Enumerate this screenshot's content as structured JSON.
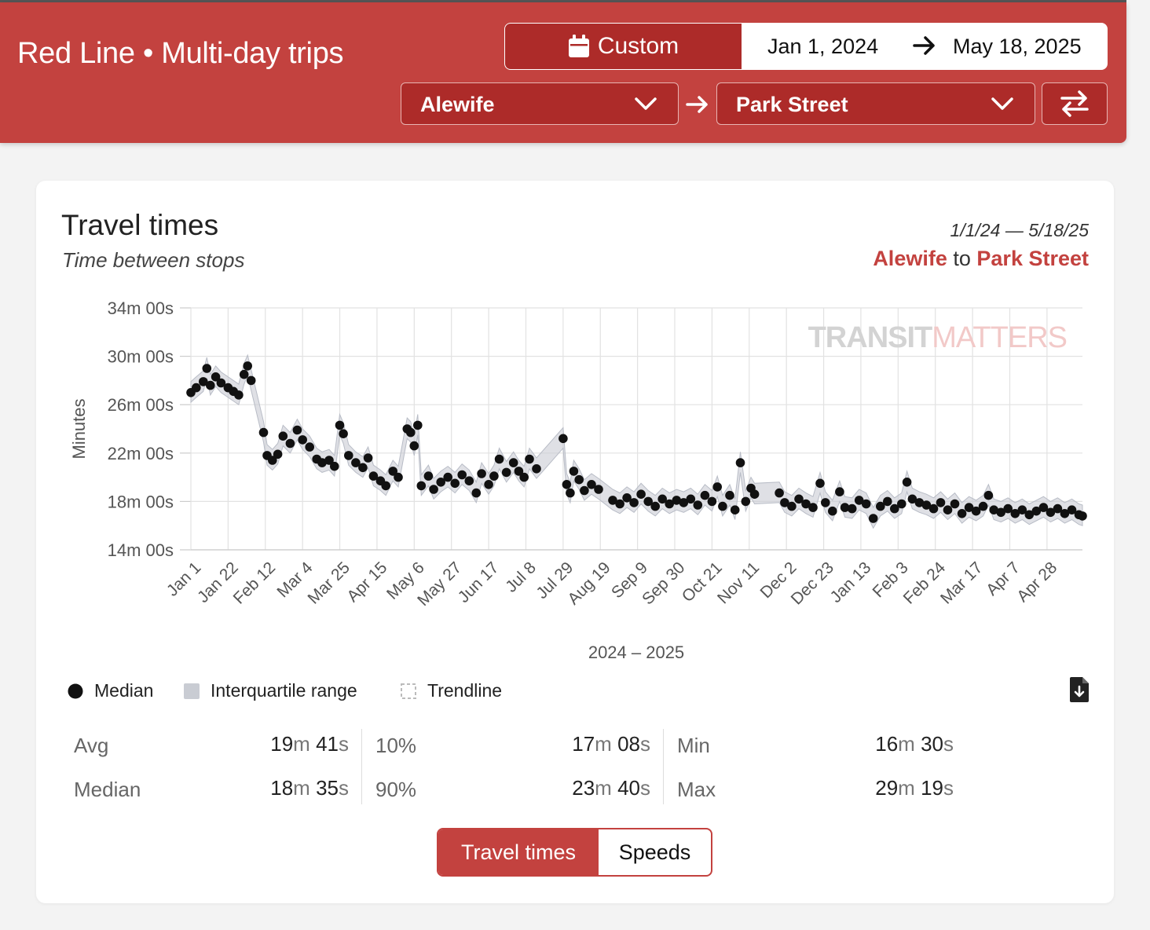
{
  "header": {
    "title": "Red Line • Multi-day trips",
    "custom_label": "Custom",
    "start_date": "Jan 1, 2024",
    "end_date": "May 18, 2025",
    "from_station": "Alewife",
    "to_station": "Park Street",
    "icons": {
      "calendar": "calendar-icon",
      "arrow": "arrow-right-icon",
      "chevron": "chevron-down-icon",
      "swap": "swap-icon"
    }
  },
  "card": {
    "title": "Travel times",
    "subtitle": "Time between stops",
    "range": "1/1/24 — 5/18/25",
    "from": "Alewife",
    "to_word": "to",
    "to": "Park Street"
  },
  "legend": {
    "median": "Median",
    "iqr": "Interquartile range",
    "trend": "Trendline"
  },
  "stats": {
    "avg": {
      "label": "Avg",
      "m": "19",
      "s": "41"
    },
    "median": {
      "label": "Median",
      "m": "18",
      "s": "35"
    },
    "p10": {
      "label": "10%",
      "m": "17",
      "s": "08"
    },
    "p90": {
      "label": "90%",
      "m": "23",
      "s": "40"
    },
    "min": {
      "label": "Min",
      "m": "16",
      "s": "30"
    },
    "max": {
      "label": "Max",
      "m": "29",
      "s": "19"
    },
    "unit_m": "m",
    "unit_s": "s"
  },
  "toggle": {
    "travel_times": "Travel times",
    "speeds": "Speeds"
  },
  "colors": {
    "brand": "#c3423f",
    "brand_dark": "#ad2b29",
    "iqr": "#c9ccd3",
    "dot": "#111111"
  },
  "chart_data": {
    "type": "scatter",
    "xlabel": "2024 – 2025",
    "ylabel": "Minutes",
    "watermark": [
      "TRANSIT",
      "MATTERS"
    ],
    "x_start": "2024-01-01",
    "x_end": "2025-05-18",
    "x_ticks": [
      "Jan 1",
      "Jan 22",
      "Feb 12",
      "Mar 4",
      "Mar 25",
      "Apr 15",
      "May 6",
      "May 27",
      "Jun 17",
      "Jul 8",
      "Jul 29",
      "Aug 19",
      "Sep 9",
      "Sep 30",
      "Oct 21",
      "Nov 11",
      "Dec 2",
      "Dec 23",
      "Jan 13",
      "Feb 3",
      "Feb 24",
      "Mar 17",
      "Apr 7",
      "Apr 28"
    ],
    "y_ticks": [
      "34m 00s",
      "30m 00s",
      "26m 00s",
      "22m 00s",
      "18m 00s",
      "14m 00s"
    ],
    "ylim": [
      14,
      34
    ],
    "grid": true,
    "series": [
      {
        "name": "Median",
        "points": [
          [
            "2024-01-01",
            27.0
          ],
          [
            "2024-01-04",
            27.4
          ],
          [
            "2024-01-08",
            27.9
          ],
          [
            "2024-01-10",
            29.0
          ],
          [
            "2024-01-12",
            27.6
          ],
          [
            "2024-01-15",
            28.3
          ],
          [
            "2024-01-18",
            27.8
          ],
          [
            "2024-01-22",
            27.4
          ],
          [
            "2024-01-25",
            27.1
          ],
          [
            "2024-01-28",
            26.8
          ],
          [
            "2024-01-31",
            28.5
          ],
          [
            "2024-02-02",
            29.2
          ],
          [
            "2024-02-04",
            28.0
          ],
          [
            "2024-02-11",
            23.7
          ],
          [
            "2024-02-13",
            21.8
          ],
          [
            "2024-02-16",
            21.4
          ],
          [
            "2024-02-19",
            21.9
          ],
          [
            "2024-02-22",
            23.4
          ],
          [
            "2024-02-26",
            22.8
          ],
          [
            "2024-03-01",
            23.9
          ],
          [
            "2024-03-04",
            23.1
          ],
          [
            "2024-03-08",
            22.5
          ],
          [
            "2024-03-12",
            21.5
          ],
          [
            "2024-03-15",
            21.2
          ],
          [
            "2024-03-19",
            21.4
          ],
          [
            "2024-03-22",
            20.9
          ],
          [
            "2024-03-25",
            24.3
          ],
          [
            "2024-03-27",
            23.6
          ],
          [
            "2024-03-30",
            21.8
          ],
          [
            "2024-04-03",
            21.2
          ],
          [
            "2024-04-07",
            20.8
          ],
          [
            "2024-04-10",
            21.6
          ],
          [
            "2024-04-13",
            20.1
          ],
          [
            "2024-04-17",
            19.7
          ],
          [
            "2024-04-20",
            19.3
          ],
          [
            "2024-04-24",
            20.5
          ],
          [
            "2024-04-27",
            20.0
          ],
          [
            "2024-05-02",
            24.0
          ],
          [
            "2024-05-04",
            23.7
          ],
          [
            "2024-05-06",
            22.6
          ],
          [
            "2024-05-08",
            24.3
          ],
          [
            "2024-05-10",
            19.3
          ],
          [
            "2024-05-14",
            20.1
          ],
          [
            "2024-05-17",
            19.0
          ],
          [
            "2024-05-21",
            19.6
          ],
          [
            "2024-05-25",
            20.0
          ],
          [
            "2024-05-29",
            19.5
          ],
          [
            "2024-06-02",
            20.2
          ],
          [
            "2024-06-06",
            19.7
          ],
          [
            "2024-06-10",
            18.7
          ],
          [
            "2024-06-13",
            20.3
          ],
          [
            "2024-06-17",
            19.4
          ],
          [
            "2024-06-20",
            20.1
          ],
          [
            "2024-06-23",
            21.5
          ],
          [
            "2024-06-27",
            20.4
          ],
          [
            "2024-07-01",
            21.2
          ],
          [
            "2024-07-04",
            20.5
          ],
          [
            "2024-07-07",
            20.0
          ],
          [
            "2024-07-10",
            21.5
          ],
          [
            "2024-07-14",
            20.7
          ],
          [
            "2024-07-29",
            23.2
          ],
          [
            "2024-07-31",
            19.4
          ],
          [
            "2024-08-02",
            18.7
          ],
          [
            "2024-08-04",
            20.5
          ],
          [
            "2024-08-07",
            19.8
          ],
          [
            "2024-08-10",
            18.9
          ],
          [
            "2024-08-14",
            19.4
          ],
          [
            "2024-08-18",
            19.0
          ],
          [
            "2024-08-26",
            18.1
          ],
          [
            "2024-08-30",
            17.8
          ],
          [
            "2024-09-03",
            18.3
          ],
          [
            "2024-09-07",
            17.9
          ],
          [
            "2024-09-11",
            18.6
          ],
          [
            "2024-09-15",
            18.0
          ],
          [
            "2024-09-19",
            17.6
          ],
          [
            "2024-09-23",
            18.2
          ],
          [
            "2024-09-27",
            17.8
          ],
          [
            "2024-10-01",
            18.1
          ],
          [
            "2024-10-05",
            17.9
          ],
          [
            "2024-10-09",
            18.2
          ],
          [
            "2024-10-13",
            17.7
          ],
          [
            "2024-10-17",
            18.5
          ],
          [
            "2024-10-21",
            18.0
          ],
          [
            "2024-10-24",
            19.2
          ],
          [
            "2024-10-27",
            17.6
          ],
          [
            "2024-10-31",
            18.5
          ],
          [
            "2024-11-03",
            17.3
          ],
          [
            "2024-11-06",
            21.2
          ],
          [
            "2024-11-09",
            18.0
          ],
          [
            "2024-11-12",
            19.1
          ],
          [
            "2024-11-14",
            18.6
          ],
          [
            "2024-11-28",
            18.7
          ],
          [
            "2024-12-01",
            17.9
          ],
          [
            "2024-12-05",
            17.6
          ],
          [
            "2024-12-09",
            18.2
          ],
          [
            "2024-12-13",
            17.8
          ],
          [
            "2024-12-17",
            17.5
          ],
          [
            "2024-12-21",
            19.5
          ],
          [
            "2024-12-24",
            17.9
          ],
          [
            "2024-12-28",
            17.2
          ],
          [
            "2025-01-01",
            18.8
          ],
          [
            "2025-01-04",
            17.5
          ],
          [
            "2025-01-08",
            17.4
          ],
          [
            "2025-01-12",
            18.1
          ],
          [
            "2025-01-16",
            17.8
          ],
          [
            "2025-01-20",
            16.6
          ],
          [
            "2025-01-24",
            17.6
          ],
          [
            "2025-01-28",
            18.0
          ],
          [
            "2025-02-01",
            17.4
          ],
          [
            "2025-02-05",
            17.8
          ],
          [
            "2025-02-08",
            19.6
          ],
          [
            "2025-02-11",
            18.2
          ],
          [
            "2025-02-15",
            17.9
          ],
          [
            "2025-02-19",
            17.7
          ],
          [
            "2025-02-23",
            17.4
          ],
          [
            "2025-02-27",
            17.9
          ],
          [
            "2025-03-03",
            17.3
          ],
          [
            "2025-03-07",
            17.8
          ],
          [
            "2025-03-11",
            17.0
          ],
          [
            "2025-03-15",
            17.5
          ],
          [
            "2025-03-19",
            17.2
          ],
          [
            "2025-03-23",
            17.6
          ],
          [
            "2025-03-26",
            18.5
          ],
          [
            "2025-03-29",
            17.3
          ],
          [
            "2025-04-02",
            17.1
          ],
          [
            "2025-04-06",
            17.4
          ],
          [
            "2025-04-10",
            17.0
          ],
          [
            "2025-04-14",
            17.3
          ],
          [
            "2025-04-18",
            16.9
          ],
          [
            "2025-04-22",
            17.2
          ],
          [
            "2025-04-26",
            17.5
          ],
          [
            "2025-04-30",
            17.1
          ],
          [
            "2025-05-04",
            17.4
          ],
          [
            "2025-05-08",
            17.0
          ],
          [
            "2025-05-12",
            17.3
          ],
          [
            "2025-05-16",
            16.9
          ],
          [
            "2025-05-18",
            16.8
          ]
        ]
      }
    ]
  }
}
